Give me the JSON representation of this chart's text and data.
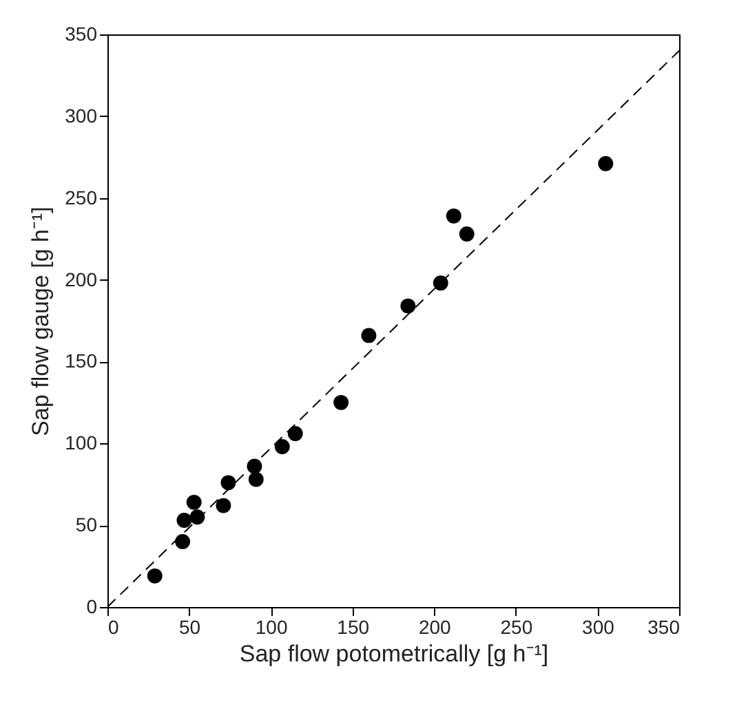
{
  "chart_data": {
    "type": "scatter",
    "xlabel": "Sap flow potometrically [g h⁻¹]",
    "ylabel": "Sap flow gauge [g h⁻¹]",
    "xlim": [
      0,
      350
    ],
    "ylim": [
      0,
      350
    ],
    "xticks": [
      0,
      50,
      100,
      150,
      200,
      250,
      300,
      350
    ],
    "yticks": [
      0,
      50,
      100,
      150,
      200,
      250,
      300,
      350
    ],
    "grid": false,
    "series": [
      {
        "color": "#000000",
        "marker": "circle",
        "x": [
          29,
          46,
          47,
          53,
          55,
          71,
          74,
          90,
          91,
          107,
          115,
          143,
          160,
          184,
          204,
          212,
          220,
          305
        ],
        "values": [
          19,
          40,
          53,
          64,
          55,
          62,
          76,
          86,
          78,
          98,
          106,
          125,
          166,
          184,
          198,
          239,
          228,
          271
        ]
      },
      {
        "type": "line",
        "color": "#000000",
        "line_style": "dashed",
        "marker": "none",
        "x": [
          0,
          350
        ],
        "values": [
          0,
          340
        ]
      }
    ]
  }
}
